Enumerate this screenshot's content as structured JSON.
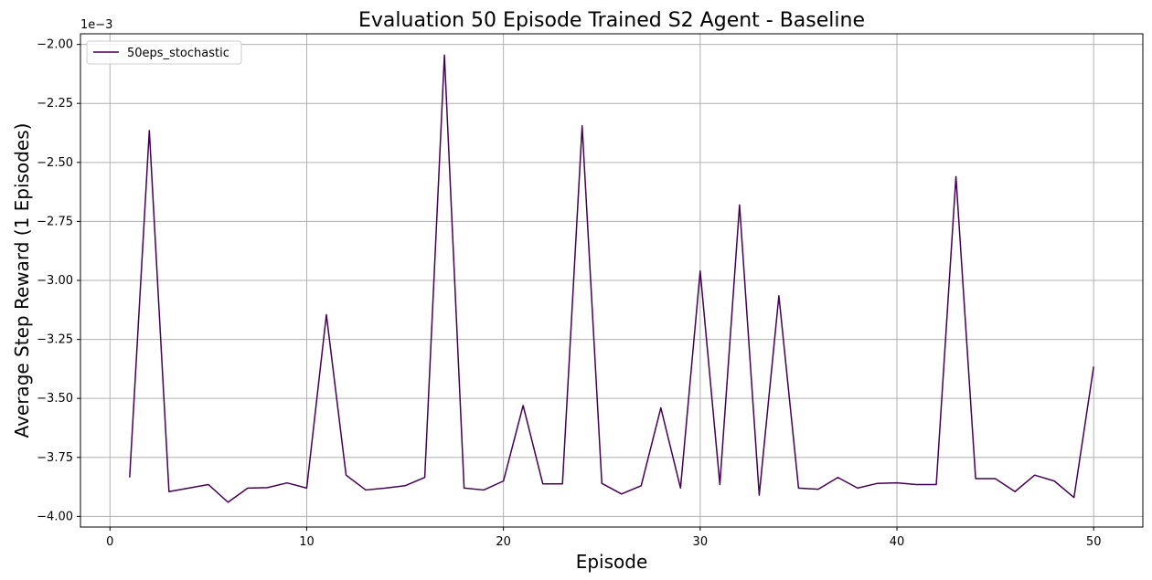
{
  "chart_data": {
    "type": "line",
    "title": "Evaluation 50 Episode Trained S2 Agent - Baseline",
    "xlabel": "Episode",
    "ylabel": "Average Step Reward (1 Episodes)",
    "offset_text": "1e−3",
    "xlim": [
      -1.5,
      52.5
    ],
    "ylim": [
      -4.045,
      -1.955
    ],
    "xticks": [
      0,
      10,
      20,
      30,
      40,
      50
    ],
    "yticks": [
      -4.0,
      -3.75,
      -3.5,
      -3.25,
      -3.0,
      -2.75,
      -2.5,
      -2.25,
      -2.0
    ],
    "ytick_labels": [
      "−4.00",
      "−3.75",
      "−3.50",
      "−3.25",
      "−3.00",
      "−2.75",
      "−2.50",
      "−2.25",
      "−2.00"
    ],
    "grid": true,
    "legend_position": "upper-left",
    "series": [
      {
        "name": "50eps_stochastic",
        "color": "#440154",
        "x": [
          1,
          2,
          3,
          4,
          5,
          6,
          7,
          8,
          9,
          10,
          11,
          12,
          13,
          14,
          15,
          16,
          17,
          18,
          19,
          20,
          21,
          22,
          23,
          24,
          25,
          26,
          27,
          28,
          29,
          30,
          31,
          32,
          33,
          34,
          35,
          36,
          37,
          38,
          39,
          40,
          41,
          42,
          43,
          44,
          45,
          46,
          47,
          48,
          49,
          50
        ],
        "values": [
          -3.835,
          -2.365,
          -3.895,
          -3.88,
          -3.865,
          -3.94,
          -3.88,
          -3.878,
          -3.858,
          -3.88,
          -3.145,
          -3.825,
          -3.888,
          -3.88,
          -3.87,
          -3.835,
          -2.045,
          -3.88,
          -3.888,
          -3.85,
          -3.53,
          -3.862,
          -3.862,
          -2.345,
          -3.86,
          -3.905,
          -3.87,
          -3.54,
          -3.88,
          -2.96,
          -3.865,
          -2.68,
          -3.91,
          -3.065,
          -3.88,
          -3.885,
          -3.835,
          -3.88,
          -3.86,
          -3.858,
          -3.865,
          -3.865,
          -2.56,
          -3.84,
          -3.84,
          -3.895,
          -3.825,
          -3.85,
          -3.92,
          -3.365
        ]
      }
    ]
  }
}
